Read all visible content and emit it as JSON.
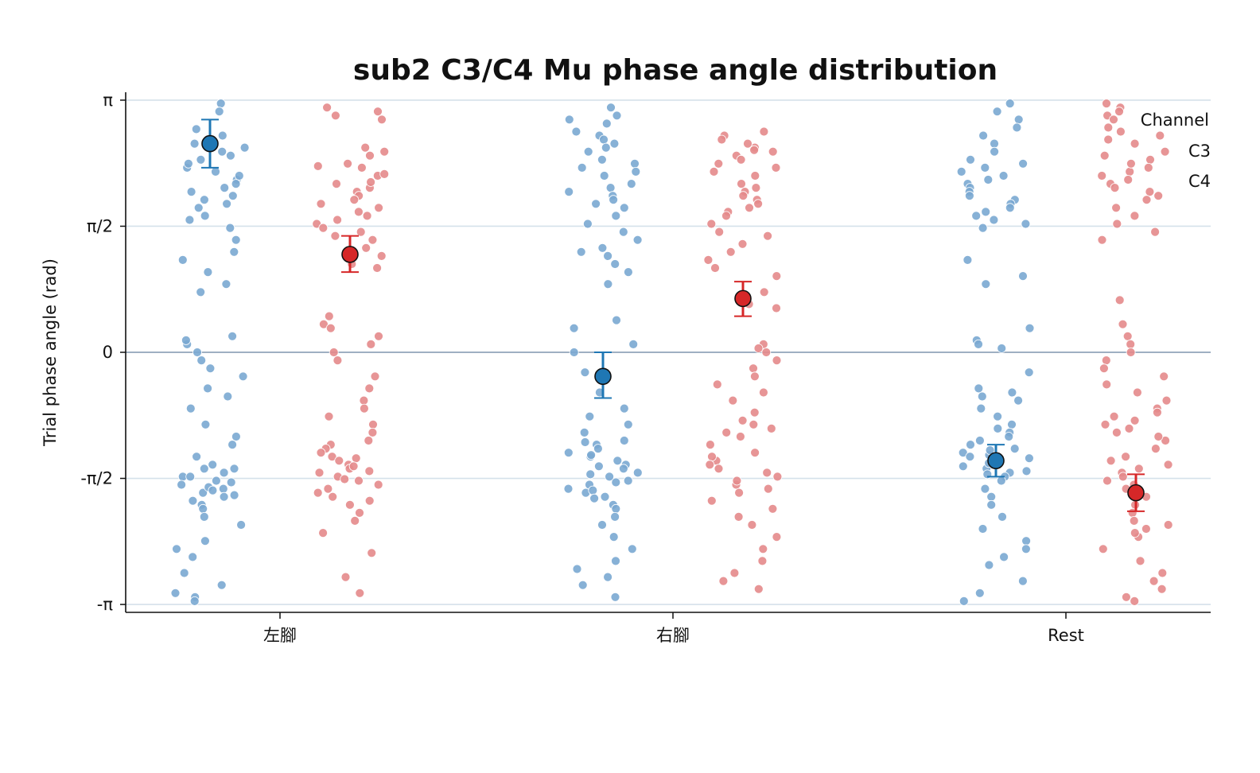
{
  "chart_data": {
    "type": "scatter",
    "title": "sub2 C3/C4 Mu phase angle distribution",
    "xlabel": "",
    "ylabel": "Trial phase angle (rad)",
    "categories": [
      "左腳",
      "右腳",
      "Rest"
    ],
    "y_ticks": [
      {
        "value": 3.14159,
        "label": "π"
      },
      {
        "value": 1.5708,
        "label": "π/2"
      },
      {
        "value": 0,
        "label": "0"
      },
      {
        "value": -1.5708,
        "label": "-π/2"
      },
      {
        "value": -3.14159,
        "label": "-π"
      }
    ],
    "ylim": [
      -3.24,
      3.24
    ],
    "grid": "horizontal",
    "legend": {
      "title": "Channel",
      "position": "top-right"
    },
    "series": [
      {
        "name": "C3",
        "color": "#1f77b4",
        "points_color": "#7aa9d1",
        "groups": [
          {
            "category": "左腳",
            "mean": 2.6,
            "err_low": 2.3,
            "err_high": 2.9,
            "values": [
              3.1,
              2.78,
              3.0,
              2.55,
              2.7,
              2.5,
              2.3,
              2.15,
              2.05,
              1.95,
              1.85,
              1.8,
              2.45,
              2.35,
              2.25,
              2.0,
              1.65,
              1.55,
              1.4,
              1.25,
              1.15,
              1.0,
              0.85,
              0.75,
              2.6,
              2.4,
              2.2,
              2.1,
              1.9,
              1.7,
              0.2,
              0.1,
              0.15,
              0.0,
              -0.1,
              -0.2,
              -0.3,
              -0.45,
              -0.55,
              -0.7,
              -0.9,
              -1.05,
              -1.15,
              -1.3,
              -1.4,
              -1.45,
              -1.5,
              -1.55,
              -1.6,
              -1.65,
              -1.7,
              -1.75,
              -1.8,
              -1.85,
              -1.9,
              -1.95,
              -2.05,
              -2.15,
              -2.35,
              -2.45,
              -2.55,
              -2.75,
              -2.9,
              -3.0,
              -3.05,
              -3.1,
              -1.45,
              -1.55,
              -1.62,
              -1.68,
              -1.72,
              -1.78
            ]
          },
          {
            "category": "右腳",
            "mean": -0.3,
            "err_low": -0.57,
            "err_high": 0.0,
            "values": [
              3.05,
              2.95,
              2.9,
              2.85,
              2.7,
              2.65,
              2.6,
              2.5,
              2.4,
              2.35,
              2.3,
              2.2,
              2.1,
              2.05,
              2.0,
              1.95,
              1.9,
              1.85,
              1.8,
              1.7,
              1.6,
              1.5,
              1.4,
              1.3,
              1.25,
              1.2,
              1.1,
              1.0,
              0.85,
              0.4,
              0.3,
              0.1,
              0.0,
              -0.25,
              -0.5,
              -0.7,
              -0.8,
              -0.9,
              -1.0,
              -1.1,
              -1.15,
              -1.2,
              -1.25,
              -1.3,
              -1.35,
              -1.4,
              -1.45,
              -1.5,
              -1.55,
              -1.6,
              -1.65,
              -1.7,
              -1.75,
              -1.8,
              -1.9,
              -1.95,
              -2.05,
              -2.15,
              -2.3,
              -2.45,
              -2.6,
              -2.7,
              -2.8,
              -2.9,
              -3.05,
              -1.42,
              -1.52,
              -1.62,
              -1.72,
              -1.82,
              -1.12,
              -1.28,
              2.75,
              2.55,
              2.25
            ]
          },
          {
            "category": "Rest",
            "mean": -1.35,
            "err_low": -1.55,
            "err_high": -1.15,
            "values": [
              3.1,
              3.0,
              2.9,
              2.8,
              2.7,
              2.6,
              2.5,
              2.4,
              2.35,
              2.3,
              2.25,
              2.2,
              2.15,
              2.1,
              2.05,
              2.0,
              1.95,
              1.9,
              1.85,
              1.8,
              1.75,
              1.7,
              1.65,
              1.6,
              1.55,
              1.15,
              0.95,
              0.85,
              0.3,
              0.15,
              0.1,
              0.05,
              -0.25,
              -0.45,
              -0.5,
              -0.55,
              -0.6,
              -0.7,
              -0.8,
              -0.9,
              -0.95,
              -1.0,
              -1.05,
              -1.1,
              -1.15,
              -1.2,
              -1.25,
              -1.3,
              -1.35,
              -1.4,
              -1.45,
              -1.5,
              -1.55,
              -1.6,
              -1.7,
              -1.8,
              -1.9,
              -2.05,
              -2.2,
              -2.35,
              -2.45,
              -2.55,
              -2.65,
              -2.85,
              -3.0,
              -3.1,
              -1.28,
              -1.38,
              -1.48,
              -1.32,
              -1.42,
              -1.22,
              -1.52
            ]
          }
        ]
      },
      {
        "name": "C4",
        "color": "#d62728",
        "points_color": "#e48a8b",
        "groups": [
          {
            "category": "左腳",
            "mean": 1.22,
            "err_low": 1.0,
            "err_high": 1.45,
            "values": [
              3.05,
              3.0,
              2.95,
              2.9,
              2.55,
              2.5,
              2.45,
              2.35,
              2.3,
              2.2,
              2.1,
              2.05,
              2.0,
              1.95,
              1.9,
              1.85,
              1.8,
              1.7,
              1.6,
              1.5,
              1.45,
              1.4,
              1.3,
              1.2,
              1.1,
              1.05,
              0.45,
              0.35,
              0.3,
              0.2,
              0.1,
              0.0,
              -0.1,
              -0.3,
              -0.45,
              -0.6,
              -0.7,
              -0.8,
              -0.9,
              -1.0,
              -1.1,
              -1.15,
              -1.2,
              -1.25,
              -1.3,
              -1.35,
              -1.4,
              -1.45,
              -1.5,
              -1.55,
              -1.6,
              -1.65,
              -1.7,
              -1.75,
              -1.8,
              -1.85,
              -1.9,
              -2.0,
              -2.1,
              -2.25,
              -2.5,
              -2.8,
              -3.0,
              1.75,
              1.65,
              1.55,
              -1.32,
              -1.42,
              -1.48,
              -1.58,
              2.32,
              2.22,
              2.12
            ]
          },
          {
            "category": "右腳",
            "mean": 0.67,
            "err_low": 0.45,
            "err_high": 0.88,
            "values": [
              2.75,
              2.7,
              2.65,
              2.55,
              2.5,
              2.45,
              2.4,
              2.3,
              2.2,
              2.1,
              2.05,
              2.0,
              1.95,
              1.9,
              1.85,
              1.75,
              1.7,
              1.6,
              1.5,
              1.45,
              1.35,
              1.25,
              1.15,
              1.05,
              0.95,
              0.75,
              0.6,
              0.55,
              0.1,
              0.05,
              0.0,
              -0.1,
              -0.2,
              -0.3,
              -0.4,
              -0.5,
              -0.6,
              -0.75,
              -0.85,
              -0.95,
              -1.05,
              -1.15,
              -1.25,
              -1.35,
              -1.45,
              -1.55,
              -1.65,
              -1.75,
              -1.85,
              -1.95,
              -2.05,
              -2.15,
              -2.3,
              -2.45,
              -2.6,
              -2.75,
              -2.85,
              -2.95,
              -1.3,
              -1.4,
              -1.5,
              -1.6,
              -1.7,
              -0.9,
              -1.0,
              2.35,
              2.25,
              1.8,
              2.6,
              2.52
            ]
          },
          {
            "category": "Rest",
            "mean": -1.75,
            "err_low": -1.98,
            "err_high": -1.52,
            "values": [
              3.1,
              3.05,
              3.0,
              2.95,
              2.9,
              2.8,
              2.75,
              2.7,
              2.65,
              2.6,
              2.5,
              2.45,
              2.4,
              2.3,
              2.25,
              2.2,
              2.1,
              2.05,
              2.0,
              1.95,
              1.9,
              1.8,
              1.7,
              1.6,
              1.5,
              1.4,
              0.65,
              0.35,
              0.2,
              0.1,
              0.0,
              -0.1,
              -0.2,
              -0.3,
              -0.4,
              -0.5,
              -0.6,
              -0.7,
              -0.8,
              -0.9,
              -1.0,
              -1.1,
              -1.2,
              -1.3,
              -1.4,
              -1.5,
              -1.6,
              -1.7,
              -1.8,
              -1.9,
              -2.0,
              -2.1,
              -2.2,
              -2.3,
              -2.45,
              -2.6,
              -2.75,
              -2.85,
              -2.95,
              -3.05,
              -3.1,
              -1.35,
              -1.45,
              -1.55,
              -1.65,
              -0.75,
              -0.85,
              -0.95,
              -1.05,
              -2.15,
              -2.25,
              2.15,
              2.35
            ]
          }
        ]
      }
    ]
  }
}
